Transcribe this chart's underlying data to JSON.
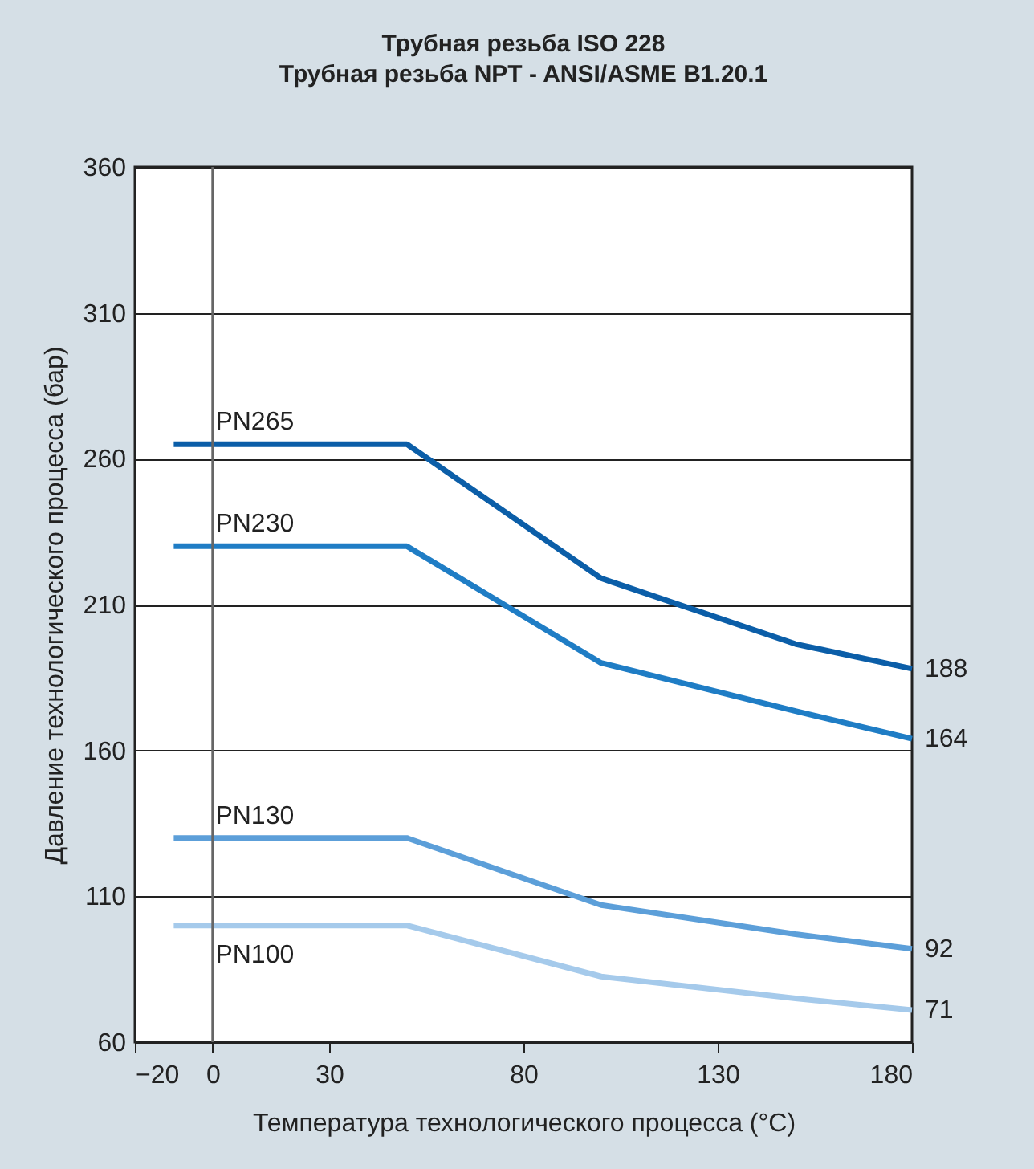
{
  "chart_data": {
    "type": "line",
    "title": "Трубная резьба ISO 228\nТрубная резьба NPT - ANSI/ASME B1.20.1",
    "xlabel": "Температура технологического процесса (°C)",
    "ylabel": "Давление технологического процесса (бар)",
    "x": [
      -10,
      50,
      100,
      150,
      180
    ],
    "series": [
      {
        "name": "PN265",
        "color": "#0b5ea8",
        "values": [
          265,
          265,
          219,
          196.5,
          188
        ],
        "value_labels": [
          null,
          null,
          null,
          null,
          "188"
        ]
      },
      {
        "name": "PN230",
        "color": "#1f7dc5",
        "values": [
          230,
          230,
          190,
          173.5,
          164
        ],
        "value_labels": [
          null,
          null,
          null,
          null,
          "164"
        ]
      },
      {
        "name": "PN130",
        "color": "#5c9fd9",
        "values": [
          130,
          130,
          107,
          97,
          92
        ],
        "value_labels": [
          null,
          null,
          null,
          null,
          "92"
        ]
      },
      {
        "name": "PN100",
        "color": "#a5caeb",
        "values": [
          100,
          100,
          82.5,
          75,
          71
        ],
        "value_labels": [
          null,
          null,
          null,
          null,
          "71"
        ]
      }
    ],
    "ref_lines": [
      {
        "axis": "x",
        "value": 0,
        "color": "#666666"
      }
    ],
    "xlim": [
      -20,
      180
    ],
    "xticks": [
      -20,
      0,
      30,
      80,
      130,
      180
    ],
    "ylim": [
      60,
      360
    ],
    "yticks": [
      60,
      110,
      160,
      210,
      260,
      310,
      360
    ],
    "grid": "y",
    "marker": "none",
    "line_style": "solid"
  }
}
